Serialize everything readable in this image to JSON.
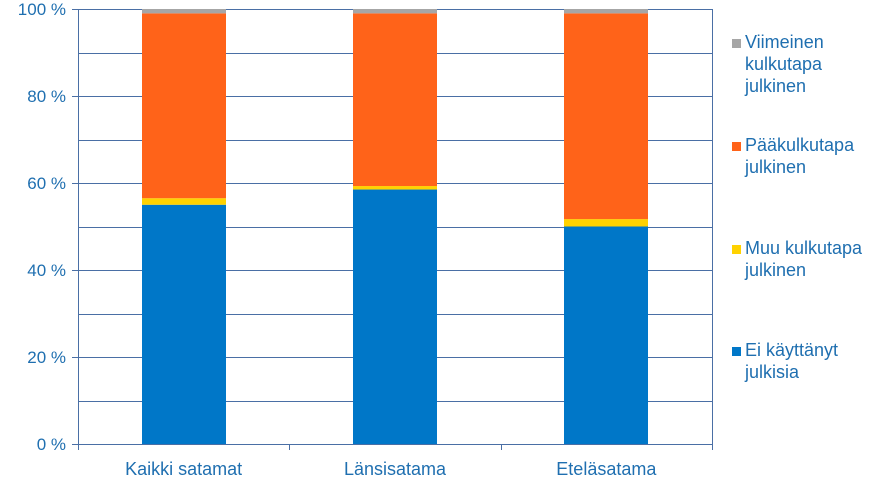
{
  "chart_data": {
    "type": "bar",
    "stacked": true,
    "percent_axis": true,
    "categories": [
      "Kaikki satamat",
      "Länsisatama",
      "Eteläsatama"
    ],
    "y_ticks": [
      "0 %",
      "20 %",
      "40 %",
      "60 %",
      "80 %",
      "100 %"
    ],
    "ylim": [
      0,
      100
    ],
    "grid": true,
    "legend_position": "right",
    "series": [
      {
        "name": "Ei käyttänyt julkisia",
        "legend_lines": [
          "Ei käyttänyt",
          "julkisia"
        ],
        "color": "#0077c8",
        "values": [
          55,
          58.5,
          50
        ]
      },
      {
        "name": "Muu kulkutapa julkinen",
        "legend_lines": [
          "Muu kulkutapa",
          "julkinen"
        ],
        "color": "#ffd200",
        "values": [
          1.5,
          0.8,
          1.7
        ]
      },
      {
        "name": "Pääkulkutapa julkinen",
        "legend_lines": [
          "Pääkulkutapa",
          "julkinen"
        ],
        "color": "#ff6319",
        "values": [
          42.5,
          39.7,
          47.3
        ]
      },
      {
        "name": "Viimeinen kulkutapa julkinen",
        "legend_lines": [
          "Viimeinen",
          "kulkutapa",
          "julkinen"
        ],
        "color": "#a6a6a6",
        "values": [
          1,
          1,
          1
        ]
      }
    ]
  }
}
